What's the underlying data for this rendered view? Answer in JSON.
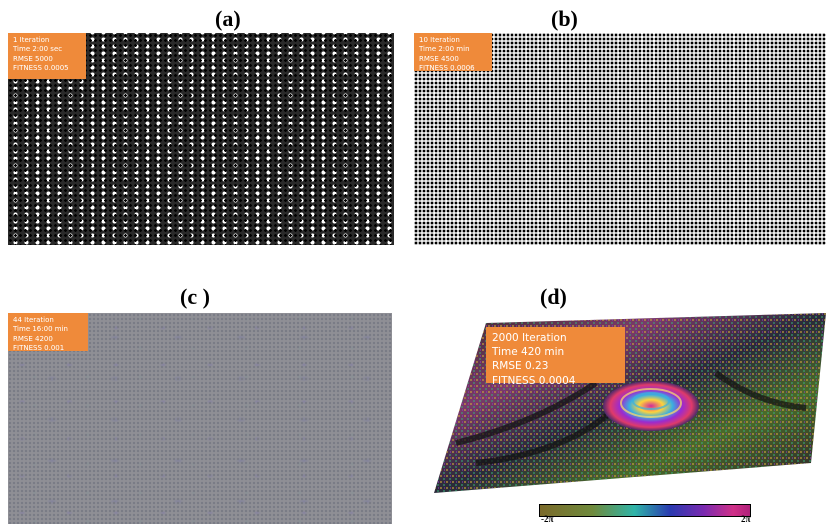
{
  "panels": {
    "a": {
      "label": "(a)",
      "info": [
        "1  Iteration",
        "Time 2:00 sec",
        "RMSE  5000",
        "FITNESS  0.0005"
      ]
    },
    "b": {
      "label": "(b)",
      "info": [
        "10  Iteration",
        "Time 2:00 min",
        "RMSE  4500",
        "FITNESS  0.0006"
      ]
    },
    "c": {
      "label": "(c )",
      "info": [
        "44  Iteration",
        "Time 16:00 min",
        "RMSE  4200",
        "FITNESS  0.001"
      ]
    },
    "d": {
      "label": "(d)",
      "info": [
        "2000 Iteration",
        "Time 420 min",
        "RMSE  0.23",
        "FITNESS  0.0004"
      ]
    }
  },
  "colorbar": {
    "min_label": "-2π",
    "max_label": "2π"
  },
  "colors": {
    "info_box": "#ef8a3a"
  }
}
